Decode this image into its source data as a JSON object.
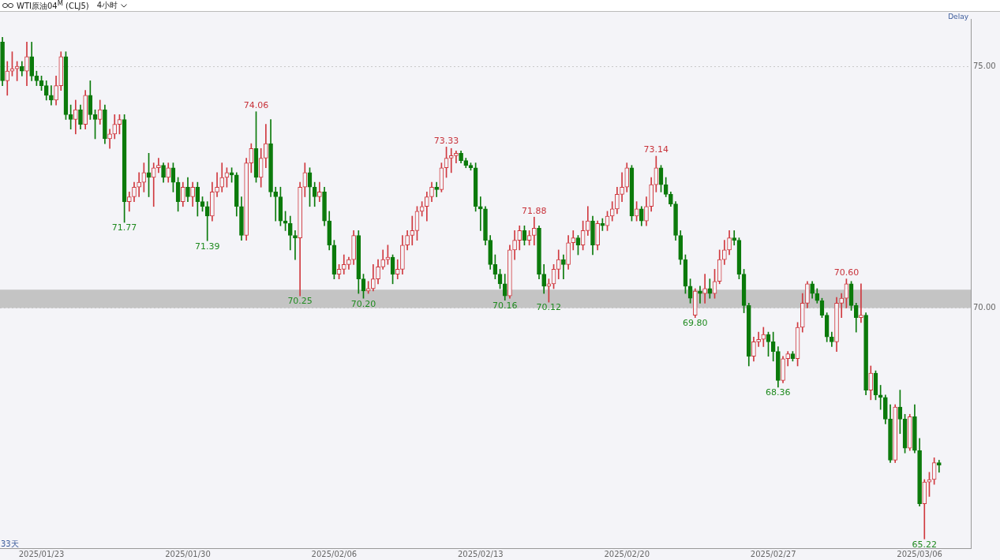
{
  "chart_data": {
    "type": "candlestick",
    "title": "WTI原油04$^{M}$ (CLJ5)",
    "subtitle": "4小时",
    "categories": [
      null,
      null,
      null,
      null,
      null,
      null,
      null,
      null,
      "2025/01/23",
      null,
      null,
      null,
      null,
      null,
      null,
      null,
      null,
      null,
      null,
      null,
      null,
      null,
      null,
      null,
      null,
      null,
      null,
      null,
      null,
      null,
      null,
      null,
      null,
      null,
      null,
      null,
      null,
      null,
      "2025/01/30",
      null,
      null,
      null,
      null,
      null,
      null,
      null,
      null,
      null,
      null,
      null,
      null,
      null,
      null,
      null,
      null,
      null,
      null,
      null,
      null,
      null,
      null,
      null,
      null,
      null,
      null,
      null,
      null,
      null,
      "2025/02/06",
      null,
      null,
      null,
      null,
      null,
      null,
      null,
      null,
      null,
      null,
      null,
      null,
      null,
      null,
      null,
      null,
      null,
      null,
      null,
      null,
      null,
      null,
      null,
      null,
      null,
      null,
      null,
      null,
      null,
      "2025/02/13",
      null,
      null,
      null,
      null,
      null,
      null,
      null,
      null,
      null,
      null,
      null,
      null,
      null,
      null,
      null,
      null,
      null,
      null,
      null,
      null,
      null,
      null,
      null,
      null,
      null,
      null,
      null,
      null,
      null,
      "2025/02/20",
      null,
      null,
      null,
      null,
      null,
      null,
      null,
      null,
      null,
      null,
      null,
      null,
      null,
      null,
      null,
      null,
      null,
      null,
      null,
      null,
      null,
      null,
      null,
      null,
      null,
      null,
      null,
      null,
      null,
      "2025/02/27",
      null,
      null,
      null,
      null,
      null,
      null,
      null,
      null,
      null,
      null,
      null,
      null,
      null,
      null,
      null,
      null,
      null,
      null,
      null,
      null,
      null,
      null,
      null,
      null,
      null,
      null,
      null,
      null,
      null,
      "2025/03/06",
      null,
      null,
      null,
      null,
      null,
      null,
      null,
      null,
      null,
      null
    ],
    "ohlc": [
      [
        75.5,
        75.6,
        74.6,
        74.7
      ],
      [
        74.7,
        75.1,
        74.4,
        74.9
      ],
      [
        74.9,
        75.3,
        74.8,
        74.95
      ],
      [
        74.95,
        75.1,
        74.7,
        75.0
      ],
      [
        75.0,
        75.1,
        74.8,
        74.9
      ],
      [
        74.9,
        75.5,
        74.6,
        75.2
      ],
      [
        75.2,
        75.5,
        74.7,
        74.8
      ],
      [
        74.8,
        74.9,
        74.6,
        74.7
      ],
      [
        74.7,
        74.8,
        74.5,
        74.6
      ],
      [
        74.6,
        74.7,
        74.3,
        74.4
      ],
      [
        74.4,
        74.6,
        74.2,
        74.3
      ],
      [
        74.3,
        74.8,
        74.2,
        74.6
      ],
      [
        74.6,
        75.3,
        74.5,
        75.2
      ],
      [
        75.2,
        75.3,
        73.9,
        74.0
      ],
      [
        74.0,
        74.2,
        73.7,
        73.9
      ],
      [
        73.9,
        74.3,
        73.6,
        74.1
      ],
      [
        74.1,
        74.2,
        73.7,
        73.8
      ],
      [
        73.8,
        74.5,
        73.7,
        74.4
      ],
      [
        74.4,
        74.7,
        73.9,
        74.0
      ],
      [
        74.0,
        74.1,
        73.5,
        73.9
      ],
      [
        73.9,
        74.3,
        73.8,
        74.1
      ],
      [
        74.1,
        74.2,
        73.4,
        73.5
      ],
      [
        73.5,
        73.7,
        73.3,
        73.6
      ],
      [
        73.6,
        74.0,
        73.5,
        73.8
      ],
      [
        73.8,
        74.0,
        73.6,
        73.9
      ],
      [
        73.9,
        74.0,
        71.77,
        72.2
      ],
      [
        72.2,
        72.4,
        72.0,
        72.3
      ],
      [
        72.3,
        72.6,
        72.2,
        72.5
      ],
      [
        72.5,
        72.8,
        72.3,
        72.6
      ],
      [
        72.6,
        73.0,
        72.4,
        72.8
      ],
      [
        72.8,
        73.2,
        72.3,
        72.7
      ],
      [
        72.7,
        73.0,
        72.1,
        72.9
      ],
      [
        72.9,
        73.1,
        72.8,
        72.95
      ],
      [
        72.95,
        73.0,
        72.6,
        72.7
      ],
      [
        72.7,
        73.0,
        72.6,
        72.9
      ],
      [
        72.9,
        73.0,
        72.4,
        72.6
      ],
      [
        72.6,
        72.7,
        72.0,
        72.2
      ],
      [
        72.2,
        72.6,
        72.1,
        72.5
      ],
      [
        72.5,
        72.7,
        72.2,
        72.3
      ],
      [
        72.3,
        72.6,
        72.1,
        72.5
      ],
      [
        72.5,
        72.6,
        71.9,
        72.2
      ],
      [
        72.2,
        72.3,
        72.0,
        72.1
      ],
      [
        72.1,
        72.2,
        71.39,
        71.9
      ],
      [
        71.9,
        72.6,
        71.8,
        72.4
      ],
      [
        72.4,
        72.8,
        72.3,
        72.5
      ],
      [
        72.5,
        73.0,
        72.4,
        72.7
      ],
      [
        72.7,
        72.9,
        72.5,
        72.8
      ],
      [
        72.8,
        72.9,
        72.6,
        72.75
      ],
      [
        72.75,
        72.8,
        71.9,
        72.1
      ],
      [
        72.1,
        72.3,
        71.4,
        71.5
      ],
      [
        71.5,
        73.1,
        71.4,
        73.0
      ],
      [
        73.0,
        73.4,
        72.8,
        73.3
      ],
      [
        73.3,
        74.06,
        72.6,
        72.7
      ],
      [
        72.7,
        73.3,
        72.5,
        73.1
      ],
      [
        73.1,
        73.8,
        72.9,
        73.4
      ],
      [
        73.4,
        73.9,
        72.3,
        72.4
      ],
      [
        72.4,
        72.5,
        71.8,
        72.3
      ],
      [
        72.3,
        72.5,
        71.7,
        71.8
      ],
      [
        71.8,
        72.0,
        71.6,
        71.75
      ],
      [
        71.75,
        71.9,
        71.2,
        71.5
      ],
      [
        71.5,
        71.6,
        71.0,
        71.45
      ],
      [
        71.45,
        72.6,
        70.25,
        72.5
      ],
      [
        72.5,
        73.0,
        72.3,
        72.8
      ],
      [
        72.8,
        72.9,
        72.1,
        72.5
      ],
      [
        72.5,
        72.6,
        72.1,
        72.3
      ],
      [
        72.3,
        72.6,
        72.2,
        72.4
      ],
      [
        72.4,
        72.5,
        71.7,
        71.8
      ],
      [
        71.8,
        72.0,
        71.2,
        71.3
      ],
      [
        71.3,
        71.4,
        70.6,
        70.7
      ],
      [
        70.7,
        70.9,
        70.6,
        70.8
      ],
      [
        70.8,
        71.1,
        70.7,
        70.9
      ],
      [
        70.9,
        71.05,
        70.8,
        71.0
      ],
      [
        71.0,
        71.6,
        70.9,
        71.5
      ],
      [
        71.5,
        71.6,
        70.3,
        70.6
      ],
      [
        70.6,
        70.7,
        70.2,
        70.35
      ],
      [
        70.35,
        70.55,
        70.3,
        70.4
      ],
      [
        70.4,
        70.9,
        70.35,
        70.6
      ],
      [
        70.6,
        71.0,
        70.5,
        70.85
      ],
      [
        70.85,
        71.2,
        70.8,
        71.0
      ],
      [
        71.0,
        71.3,
        70.9,
        71.05
      ],
      [
        71.05,
        71.1,
        70.5,
        70.7
      ],
      [
        70.7,
        71.0,
        70.6,
        70.8
      ],
      [
        70.8,
        71.5,
        70.7,
        71.3
      ],
      [
        71.3,
        71.6,
        71.2,
        71.5
      ],
      [
        71.5,
        71.9,
        71.3,
        71.6
      ],
      [
        71.6,
        72.1,
        71.4,
        72.0
      ],
      [
        72.0,
        72.2,
        71.9,
        72.1
      ],
      [
        72.1,
        72.4,
        71.8,
        72.3
      ],
      [
        72.3,
        72.6,
        72.2,
        72.5
      ],
      [
        72.5,
        72.6,
        72.3,
        72.45
      ],
      [
        72.45,
        73.0,
        72.4,
        72.9
      ],
      [
        72.9,
        73.33,
        72.7,
        73.1
      ],
      [
        73.1,
        73.3,
        72.8,
        73.15
      ],
      [
        73.15,
        73.25,
        73.0,
        73.2
      ],
      [
        73.2,
        73.25,
        73.0,
        73.05
      ],
      [
        73.05,
        73.1,
        72.9,
        72.95
      ],
      [
        72.95,
        73.0,
        72.85,
        72.9
      ],
      [
        72.9,
        73.0,
        72.0,
        72.1
      ],
      [
        72.1,
        72.3,
        71.6,
        72.05
      ],
      [
        72.05,
        72.1,
        71.3,
        71.4
      ],
      [
        71.4,
        71.5,
        70.8,
        70.9
      ],
      [
        70.9,
        71.1,
        70.6,
        70.7
      ],
      [
        70.7,
        70.8,
        70.4,
        70.5
      ],
      [
        70.5,
        70.7,
        70.16,
        70.25
      ],
      [
        70.25,
        71.3,
        70.2,
        71.2
      ],
      [
        71.2,
        71.6,
        71.0,
        71.4
      ],
      [
        71.4,
        71.7,
        71.2,
        71.6
      ],
      [
        71.6,
        71.7,
        71.3,
        71.4
      ],
      [
        71.4,
        71.6,
        71.3,
        71.5
      ],
      [
        71.5,
        71.88,
        71.3,
        71.65
      ],
      [
        71.65,
        71.7,
        70.6,
        70.7
      ],
      [
        70.7,
        70.9,
        70.3,
        70.45
      ],
      [
        70.45,
        70.6,
        70.12,
        70.5
      ],
      [
        70.5,
        70.9,
        70.4,
        70.8
      ],
      [
        70.8,
        71.2,
        70.6,
        71.0
      ],
      [
        71.0,
        71.1,
        70.6,
        70.9
      ],
      [
        70.9,
        71.5,
        70.8,
        71.35
      ],
      [
        71.35,
        71.6,
        71.2,
        71.45
      ],
      [
        71.45,
        71.5,
        71.1,
        71.3
      ],
      [
        71.3,
        71.8,
        71.2,
        71.6
      ],
      [
        71.6,
        72.1,
        71.5,
        71.8
      ],
      [
        71.8,
        71.9,
        71.1,
        71.3
      ],
      [
        71.3,
        71.8,
        71.2,
        71.75
      ],
      [
        71.75,
        71.85,
        71.6,
        71.7
      ],
      [
        71.7,
        72.0,
        71.6,
        71.9
      ],
      [
        71.9,
        72.2,
        71.8,
        72.05
      ],
      [
        72.05,
        72.5,
        71.95,
        72.35
      ],
      [
        72.35,
        72.8,
        72.2,
        72.5
      ],
      [
        72.5,
        73.0,
        72.4,
        72.9
      ],
      [
        72.9,
        72.95,
        71.8,
        71.9
      ],
      [
        71.9,
        72.2,
        71.8,
        72.05
      ],
      [
        72.05,
        72.1,
        71.7,
        71.8
      ],
      [
        71.8,
        72.3,
        71.7,
        72.1
      ],
      [
        72.1,
        72.7,
        72.0,
        72.55
      ],
      [
        72.55,
        73.14,
        72.4,
        72.9
      ],
      [
        72.9,
        72.95,
        72.4,
        72.55
      ],
      [
        72.55,
        72.7,
        72.3,
        72.35
      ],
      [
        72.35,
        72.4,
        72.1,
        72.15
      ],
      [
        72.15,
        72.2,
        71.4,
        71.5
      ],
      [
        71.5,
        71.6,
        70.9,
        71.0
      ],
      [
        71.0,
        71.1,
        70.3,
        70.45
      ],
      [
        70.45,
        70.6,
        70.1,
        70.2
      ],
      [
        69.85,
        70.4,
        69.8,
        70.35
      ],
      [
        70.35,
        70.45,
        70.1,
        70.3
      ],
      [
        70.3,
        70.7,
        70.1,
        70.4
      ],
      [
        70.4,
        70.6,
        70.2,
        70.3
      ],
      [
        70.3,
        70.8,
        70.2,
        70.55
      ],
      [
        70.55,
        71.2,
        70.5,
        71.0
      ],
      [
        71.0,
        71.4,
        70.9,
        71.2
      ],
      [
        71.2,
        71.6,
        71.1,
        71.45
      ],
      [
        71.45,
        71.6,
        71.3,
        71.4
      ],
      [
        71.4,
        71.45,
        70.6,
        70.7
      ],
      [
        70.7,
        70.8,
        69.9,
        70.05
      ],
      [
        70.05,
        70.1,
        68.8,
        69.0
      ],
      [
        69.0,
        69.4,
        68.9,
        69.3
      ],
      [
        69.3,
        69.5,
        69.2,
        69.35
      ],
      [
        69.35,
        69.6,
        69.2,
        69.45
      ],
      [
        69.45,
        69.5,
        69.0,
        69.3
      ],
      [
        69.3,
        69.5,
        68.9,
        69.1
      ],
      [
        69.1,
        69.2,
        68.36,
        68.5
      ],
      [
        68.5,
        69.0,
        68.45,
        68.95
      ],
      [
        68.95,
        69.1,
        68.8,
        69.05
      ],
      [
        69.05,
        69.1,
        68.9,
        68.95
      ],
      [
        68.95,
        69.7,
        68.8,
        69.6
      ],
      [
        69.6,
        70.3,
        69.5,
        70.1
      ],
      [
        70.1,
        70.55,
        70.0,
        70.5
      ],
      [
        70.5,
        70.55,
        70.2,
        70.3
      ],
      [
        70.3,
        70.4,
        70.1,
        70.15
      ],
      [
        70.15,
        70.2,
        69.8,
        69.85
      ],
      [
        69.85,
        69.9,
        69.3,
        69.4
      ],
      [
        69.4,
        69.5,
        69.2,
        69.3
      ],
      [
        69.3,
        70.22,
        69.1,
        70.1
      ],
      [
        70.1,
        70.3,
        69.8,
        70.2
      ],
      [
        70.2,
        70.6,
        70.0,
        70.5
      ],
      [
        70.5,
        70.55,
        69.95,
        70.05
      ],
      [
        70.05,
        70.1,
        69.5,
        69.8
      ],
      [
        69.8,
        70.5,
        69.7,
        69.85
      ],
      [
        69.85,
        69.9,
        68.2,
        68.3
      ],
      [
        68.3,
        68.8,
        68.1,
        68.65
      ],
      [
        68.65,
        68.7,
        68.1,
        68.2
      ],
      [
        68.2,
        68.4,
        67.9,
        68.15
      ],
      [
        68.15,
        68.2,
        67.6,
        67.7
      ],
      [
        67.7,
        68.0,
        66.8,
        66.85
      ],
      [
        66.85,
        68.0,
        66.8,
        67.95
      ],
      [
        67.95,
        68.3,
        67.4,
        67.7
      ],
      [
        67.7,
        67.8,
        67.0,
        67.1
      ],
      [
        67.1,
        67.8,
        67.05,
        67.75
      ],
      [
        67.75,
        68.0,
        67.0,
        67.05
      ],
      [
        67.05,
        67.3,
        65.9,
        65.95
      ],
      [
        65.95,
        66.45,
        65.22,
        66.4
      ],
      [
        66.4,
        66.6,
        66.1,
        66.45
      ],
      [
        66.45,
        66.9,
        66.35,
        66.8
      ],
      [
        66.8,
        66.85,
        66.6,
        66.75
      ],
      null,
      null,
      null,
      null,
      null,
      null
    ],
    "ylim": [
      65.03,
      75.98
    ],
    "yticks": [
      {
        "value": 75,
        "label": "75.00"
      },
      {
        "value": 70,
        "label": "70.00"
      }
    ],
    "grid": "y",
    "bands": [
      {
        "axis": "y",
        "from": 70.0,
        "to": 70.38,
        "color": "#c4c4c4"
      }
    ],
    "annotations": [
      "Delay",
      "33天",
      {
        "text": "74.06",
        "y": 74.06
      },
      {
        "text": "73.33",
        "y": 73.33
      },
      {
        "text": "71.88",
        "y": 71.88
      },
      {
        "text": "73.14",
        "y": 73.14
      },
      {
        "text": "70.60",
        "y": 70.6
      },
      {
        "text": "71.77",
        "y": 71.77
      },
      {
        "text": "71.39",
        "y": 71.39
      },
      {
        "text": "70.25",
        "y": 70.25
      },
      {
        "text": "70.20",
        "y": 70.2
      },
      {
        "text": "70.16",
        "y": 70.16
      },
      {
        "text": "70.12",
        "y": 70.12
      },
      {
        "text": "69.80",
        "y": 69.8
      },
      {
        "text": "68.36",
        "y": 68.36
      },
      {
        "text": "65.22",
        "y": 65.22
      }
    ],
    "legend": false
  }
}
